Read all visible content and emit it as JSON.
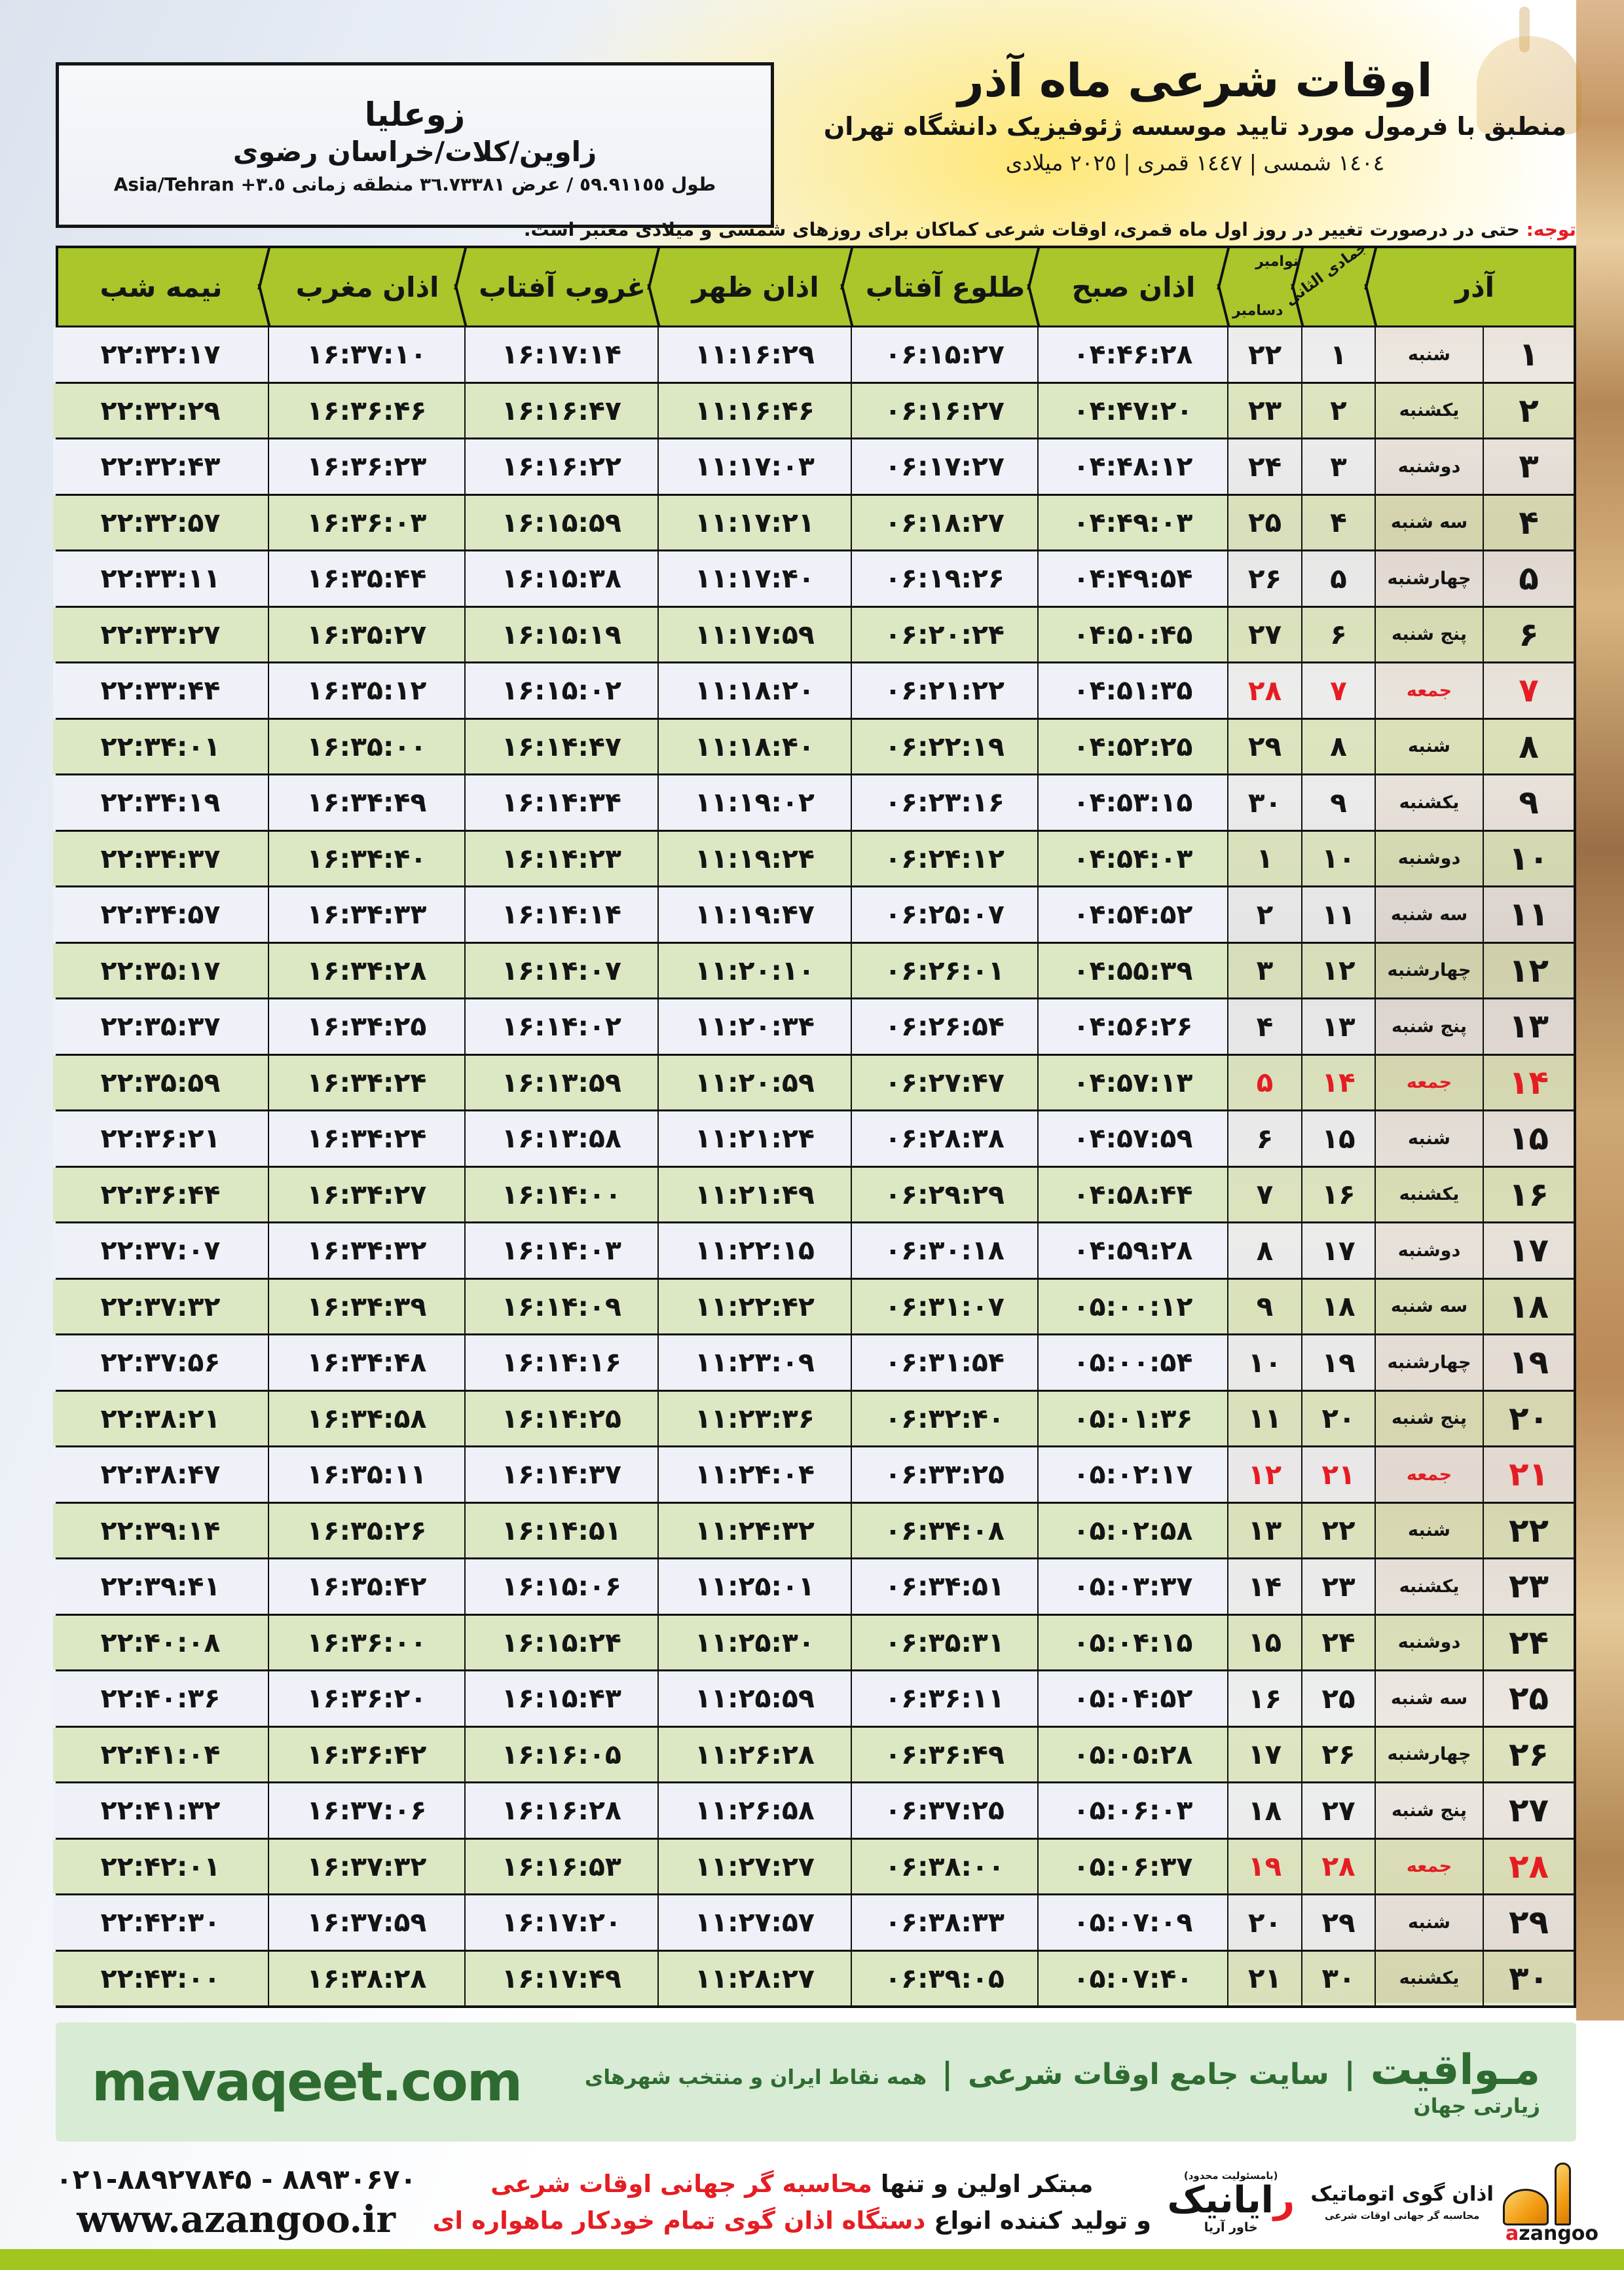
{
  "colors": {
    "header_green": "#a9c62b",
    "row_green": "#dbe8c3",
    "row_white": "#eef2f8",
    "friday_red": "#e51d23",
    "footer_green_bg": "#d8ebd4",
    "footer_green_text": "#2e6b31",
    "bottom_strip": "#a3c51f",
    "azangoo_orange": "#f29c12"
  },
  "meta": {
    "title": "اوقات شرعی ماه آذر",
    "subtitle": "منطبق با فرمول مورد تایید موسسه ژئوفیزیک دانشگاه تهران",
    "years": "١٤٠٤ شمسی | ١٤٤٧ قمری | ٢٠٢٥ میلادی"
  },
  "location": {
    "name": "زوعلیا",
    "region": "زاوین/کلات/خراسان رضوی",
    "coords_fa": "طول ٥٩.٩١١٥٥ / عرض ٣٦.٧٣٣٨١ منطقه زمانی",
    "coords_latin": "Asia/Tehran +٣.٥"
  },
  "note": {
    "label": "توجه:",
    "text": " حتی در درصورت تغییر در روز اول ماه قمری، اوقات شرعی کماکان برای روزهای شمسی و میلادی معتبر است."
  },
  "table": {
    "headers": {
      "azar": "آذر",
      "lunar": "جمادی الثانی",
      "greg_top": "نوامبر",
      "greg_bottom": "دسامبر",
      "sobh": "اذان صبح",
      "tolu": "طلوع آفتاب",
      "zohr": "اذان ظهر",
      "ghorub": "غروب آفتاب",
      "maghreb": "اذان مغرب",
      "nimeshab": "نیمه شب"
    },
    "rows": [
      {
        "azar": "۱",
        "weekday": "شنبه",
        "lunar": "۱",
        "greg": "۲۲",
        "sobh": "۰۴:۴۶:۲۸",
        "tolu": "۰۶:۱۵:۲۷",
        "zohr": "۱۱:۱۶:۲۹",
        "ghorub": "۱۶:۱۷:۱۴",
        "maghreb": "۱۶:۳۷:۱۰",
        "nimeshab": "۲۲:۳۲:۱۷",
        "friday": false
      },
      {
        "azar": "۲",
        "weekday": "یکشنبه",
        "lunar": "۲",
        "greg": "۲۳",
        "sobh": "۰۴:۴۷:۲۰",
        "tolu": "۰۶:۱۶:۲۷",
        "zohr": "۱۱:۱۶:۴۶",
        "ghorub": "۱۶:۱۶:۴۷",
        "maghreb": "۱۶:۳۶:۴۶",
        "nimeshab": "۲۲:۳۲:۲۹",
        "friday": false
      },
      {
        "azar": "۳",
        "weekday": "دوشنبه",
        "lunar": "۳",
        "greg": "۲۴",
        "sobh": "۰۴:۴۸:۱۲",
        "tolu": "۰۶:۱۷:۲۷",
        "zohr": "۱۱:۱۷:۰۳",
        "ghorub": "۱۶:۱۶:۲۲",
        "maghreb": "۱۶:۳۶:۲۳",
        "nimeshab": "۲۲:۳۲:۴۳",
        "friday": false
      },
      {
        "azar": "۴",
        "weekday": "سه شنبه",
        "lunar": "۴",
        "greg": "۲۵",
        "sobh": "۰۴:۴۹:۰۳",
        "tolu": "۰۶:۱۸:۲۷",
        "zohr": "۱۱:۱۷:۲۱",
        "ghorub": "۱۶:۱۵:۵۹",
        "maghreb": "۱۶:۳۶:۰۳",
        "nimeshab": "۲۲:۳۲:۵۷",
        "friday": false
      },
      {
        "azar": "۵",
        "weekday": "چهارشنبه",
        "lunar": "۵",
        "greg": "۲۶",
        "sobh": "۰۴:۴۹:۵۴",
        "tolu": "۰۶:۱۹:۲۶",
        "zohr": "۱۱:۱۷:۴۰",
        "ghorub": "۱۶:۱۵:۳۸",
        "maghreb": "۱۶:۳۵:۴۴",
        "nimeshab": "۲۲:۳۳:۱۱",
        "friday": false
      },
      {
        "azar": "۶",
        "weekday": "پنج شنبه",
        "lunar": "۶",
        "greg": "۲۷",
        "sobh": "۰۴:۵۰:۴۵",
        "tolu": "۰۶:۲۰:۲۴",
        "zohr": "۱۱:۱۷:۵۹",
        "ghorub": "۱۶:۱۵:۱۹",
        "maghreb": "۱۶:۳۵:۲۷",
        "nimeshab": "۲۲:۳۳:۲۷",
        "friday": false
      },
      {
        "azar": "۷",
        "weekday": "جمعه",
        "lunar": "۷",
        "greg": "۲۸",
        "sobh": "۰۴:۵۱:۳۵",
        "tolu": "۰۶:۲۱:۲۲",
        "zohr": "۱۱:۱۸:۲۰",
        "ghorub": "۱۶:۱۵:۰۲",
        "maghreb": "۱۶:۳۵:۱۲",
        "nimeshab": "۲۲:۳۳:۴۴",
        "friday": true
      },
      {
        "azar": "۸",
        "weekday": "شنبه",
        "lunar": "۸",
        "greg": "۲۹",
        "sobh": "۰۴:۵۲:۲۵",
        "tolu": "۰۶:۲۲:۱۹",
        "zohr": "۱۱:۱۸:۴۰",
        "ghorub": "۱۶:۱۴:۴۷",
        "maghreb": "۱۶:۳۵:۰۰",
        "nimeshab": "۲۲:۳۴:۰۱",
        "friday": false
      },
      {
        "azar": "۹",
        "weekday": "یکشنبه",
        "lunar": "۹",
        "greg": "۳۰",
        "sobh": "۰۴:۵۳:۱۵",
        "tolu": "۰۶:۲۳:۱۶",
        "zohr": "۱۱:۱۹:۰۲",
        "ghorub": "۱۶:۱۴:۳۴",
        "maghreb": "۱۶:۳۴:۴۹",
        "nimeshab": "۲۲:۳۴:۱۹",
        "friday": false
      },
      {
        "azar": "۱۰",
        "weekday": "دوشنبه",
        "lunar": "۱۰",
        "greg": "۱",
        "sobh": "۰۴:۵۴:۰۳",
        "tolu": "۰۶:۲۴:۱۲",
        "zohr": "۱۱:۱۹:۲۴",
        "ghorub": "۱۶:۱۴:۲۳",
        "maghreb": "۱۶:۳۴:۴۰",
        "nimeshab": "۲۲:۳۴:۳۷",
        "friday": false
      },
      {
        "azar": "۱۱",
        "weekday": "سه شنبه",
        "lunar": "۱۱",
        "greg": "۲",
        "sobh": "۰۴:۵۴:۵۲",
        "tolu": "۰۶:۲۵:۰۷",
        "zohr": "۱۱:۱۹:۴۷",
        "ghorub": "۱۶:۱۴:۱۴",
        "maghreb": "۱۶:۳۴:۳۳",
        "nimeshab": "۲۲:۳۴:۵۷",
        "friday": false
      },
      {
        "azar": "۱۲",
        "weekday": "چهارشنبه",
        "lunar": "۱۲",
        "greg": "۳",
        "sobh": "۰۴:۵۵:۳۹",
        "tolu": "۰۶:۲۶:۰۱",
        "zohr": "۱۱:۲۰:۱۰",
        "ghorub": "۱۶:۱۴:۰۷",
        "maghreb": "۱۶:۳۴:۲۸",
        "nimeshab": "۲۲:۳۵:۱۷",
        "friday": false
      },
      {
        "azar": "۱۳",
        "weekday": "پنج شنبه",
        "lunar": "۱۳",
        "greg": "۴",
        "sobh": "۰۴:۵۶:۲۶",
        "tolu": "۰۶:۲۶:۵۴",
        "zohr": "۱۱:۲۰:۳۴",
        "ghorub": "۱۶:۱۴:۰۲",
        "maghreb": "۱۶:۳۴:۲۵",
        "nimeshab": "۲۲:۳۵:۳۷",
        "friday": false
      },
      {
        "azar": "۱۴",
        "weekday": "جمعه",
        "lunar": "۱۴",
        "greg": "۵",
        "sobh": "۰۴:۵۷:۱۳",
        "tolu": "۰۶:۲۷:۴۷",
        "zohr": "۱۱:۲۰:۵۹",
        "ghorub": "۱۶:۱۳:۵۹",
        "maghreb": "۱۶:۳۴:۲۴",
        "nimeshab": "۲۲:۳۵:۵۹",
        "friday": true
      },
      {
        "azar": "۱۵",
        "weekday": "شنبه",
        "lunar": "۱۵",
        "greg": "۶",
        "sobh": "۰۴:۵۷:۵۹",
        "tolu": "۰۶:۲۸:۳۸",
        "zohr": "۱۱:۲۱:۲۴",
        "ghorub": "۱۶:۱۳:۵۸",
        "maghreb": "۱۶:۳۴:۲۴",
        "nimeshab": "۲۲:۳۶:۲۱",
        "friday": false
      },
      {
        "azar": "۱۶",
        "weekday": "یکشنبه",
        "lunar": "۱۶",
        "greg": "۷",
        "sobh": "۰۴:۵۸:۴۴",
        "tolu": "۰۶:۲۹:۲۹",
        "zohr": "۱۱:۲۱:۴۹",
        "ghorub": "۱۶:۱۴:۰۰",
        "maghreb": "۱۶:۳۴:۲۷",
        "nimeshab": "۲۲:۳۶:۴۴",
        "friday": false
      },
      {
        "azar": "۱۷",
        "weekday": "دوشنبه",
        "lunar": "۱۷",
        "greg": "۸",
        "sobh": "۰۴:۵۹:۲۸",
        "tolu": "۰۶:۳۰:۱۸",
        "zohr": "۱۱:۲۲:۱۵",
        "ghorub": "۱۶:۱۴:۰۳",
        "maghreb": "۱۶:۳۴:۳۲",
        "nimeshab": "۲۲:۳۷:۰۷",
        "friday": false
      },
      {
        "azar": "۱۸",
        "weekday": "سه شنبه",
        "lunar": "۱۸",
        "greg": "۹",
        "sobh": "۰۵:۰۰:۱۲",
        "tolu": "۰۶:۳۱:۰۷",
        "zohr": "۱۱:۲۲:۴۲",
        "ghorub": "۱۶:۱۴:۰۹",
        "maghreb": "۱۶:۳۴:۳۹",
        "nimeshab": "۲۲:۳۷:۳۲",
        "friday": false
      },
      {
        "azar": "۱۹",
        "weekday": "چهارشنبه",
        "lunar": "۱۹",
        "greg": "۱۰",
        "sobh": "۰۵:۰۰:۵۴",
        "tolu": "۰۶:۳۱:۵۴",
        "zohr": "۱۱:۲۳:۰۹",
        "ghorub": "۱۶:۱۴:۱۶",
        "maghreb": "۱۶:۳۴:۴۸",
        "nimeshab": "۲۲:۳۷:۵۶",
        "friday": false
      },
      {
        "azar": "۲۰",
        "weekday": "پنج شنبه",
        "lunar": "۲۰",
        "greg": "۱۱",
        "sobh": "۰۵:۰۱:۳۶",
        "tolu": "۰۶:۳۲:۴۰",
        "zohr": "۱۱:۲۳:۳۶",
        "ghorub": "۱۶:۱۴:۲۵",
        "maghreb": "۱۶:۳۴:۵۸",
        "nimeshab": "۲۲:۳۸:۲۱",
        "friday": false
      },
      {
        "azar": "۲۱",
        "weekday": "جمعه",
        "lunar": "۲۱",
        "greg": "۱۲",
        "sobh": "۰۵:۰۲:۱۷",
        "tolu": "۰۶:۳۳:۲۵",
        "zohr": "۱۱:۲۴:۰۴",
        "ghorub": "۱۶:۱۴:۳۷",
        "maghreb": "۱۶:۳۵:۱۱",
        "nimeshab": "۲۲:۳۸:۴۷",
        "friday": true
      },
      {
        "azar": "۲۲",
        "weekday": "شنبه",
        "lunar": "۲۲",
        "greg": "۱۳",
        "sobh": "۰۵:۰۲:۵۸",
        "tolu": "۰۶:۳۴:۰۸",
        "zohr": "۱۱:۲۴:۳۲",
        "ghorub": "۱۶:۱۴:۵۱",
        "maghreb": "۱۶:۳۵:۲۶",
        "nimeshab": "۲۲:۳۹:۱۴",
        "friday": false
      },
      {
        "azar": "۲۳",
        "weekday": "یکشنبه",
        "lunar": "۲۳",
        "greg": "۱۴",
        "sobh": "۰۵:۰۳:۳۷",
        "tolu": "۰۶:۳۴:۵۱",
        "zohr": "۱۱:۲۵:۰۱",
        "ghorub": "۱۶:۱۵:۰۶",
        "maghreb": "۱۶:۳۵:۴۲",
        "nimeshab": "۲۲:۳۹:۴۱",
        "friday": false
      },
      {
        "azar": "۲۴",
        "weekday": "دوشنبه",
        "lunar": "۲۴",
        "greg": "۱۵",
        "sobh": "۰۵:۰۴:۱۵",
        "tolu": "۰۶:۳۵:۳۱",
        "zohr": "۱۱:۲۵:۳۰",
        "ghorub": "۱۶:۱۵:۲۴",
        "maghreb": "۱۶:۳۶:۰۰",
        "nimeshab": "۲۲:۴۰:۰۸",
        "friday": false
      },
      {
        "azar": "۲۵",
        "weekday": "سه شنبه",
        "lunar": "۲۵",
        "greg": "۱۶",
        "sobh": "۰۵:۰۴:۵۲",
        "tolu": "۰۶:۳۶:۱۱",
        "zohr": "۱۱:۲۵:۵۹",
        "ghorub": "۱۶:۱۵:۴۳",
        "maghreb": "۱۶:۳۶:۲۰",
        "nimeshab": "۲۲:۴۰:۳۶",
        "friday": false
      },
      {
        "azar": "۲۶",
        "weekday": "چهارشنبه",
        "lunar": "۲۶",
        "greg": "۱۷",
        "sobh": "۰۵:۰۵:۲۸",
        "tolu": "۰۶:۳۶:۴۹",
        "zohr": "۱۱:۲۶:۲۸",
        "ghorub": "۱۶:۱۶:۰۵",
        "maghreb": "۱۶:۳۶:۴۲",
        "nimeshab": "۲۲:۴۱:۰۴",
        "friday": false
      },
      {
        "azar": "۲۷",
        "weekday": "پنج شنبه",
        "lunar": "۲۷",
        "greg": "۱۸",
        "sobh": "۰۵:۰۶:۰۳",
        "tolu": "۰۶:۳۷:۲۵",
        "zohr": "۱۱:۲۶:۵۸",
        "ghorub": "۱۶:۱۶:۲۸",
        "maghreb": "۱۶:۳۷:۰۶",
        "nimeshab": "۲۲:۴۱:۳۲",
        "friday": false
      },
      {
        "azar": "۲۸",
        "weekday": "جمعه",
        "lunar": "۲۸",
        "greg": "۱۹",
        "sobh": "۰۵:۰۶:۳۷",
        "tolu": "۰۶:۳۸:۰۰",
        "zohr": "۱۱:۲۷:۲۷",
        "ghorub": "۱۶:۱۶:۵۳",
        "maghreb": "۱۶:۳۷:۳۲",
        "nimeshab": "۲۲:۴۲:۰۱",
        "friday": true
      },
      {
        "azar": "۲۹",
        "weekday": "شنبه",
        "lunar": "۲۹",
        "greg": "۲۰",
        "sobh": "۰۵:۰۷:۰۹",
        "tolu": "۰۶:۳۸:۳۳",
        "zohr": "۱۱:۲۷:۵۷",
        "ghorub": "۱۶:۱۷:۲۰",
        "maghreb": "۱۶:۳۷:۵۹",
        "nimeshab": "۲۲:۴۲:۳۰",
        "friday": false
      },
      {
        "azar": "۳۰",
        "weekday": "یکشنبه",
        "lunar": "۳۰",
        "greg": "۲۱",
        "sobh": "۰۵:۰۷:۴۰",
        "tolu": "۰۶:۳۹:۰۵",
        "zohr": "۱۱:۲۸:۲۷",
        "ghorub": "۱۶:۱۷:۴۹",
        "maghreb": "۱۶:۳۸:۲۸",
        "nimeshab": "۲۲:۴۳:۰۰",
        "friday": false
      }
    ]
  },
  "footer_site": {
    "latin": "mavaqeet.com",
    "brand": "مـواقیت",
    "sep": "|",
    "tagline": "سایت جامع اوقات شرعی",
    "scope": "همه نقاط ایران و منتخب شهرهای زیارتی جهان"
  },
  "footer_bottom": {
    "phone": "۰۲۱-۸۸۹۲۷۸۴۵ - ۸۸۹۳۰۶۷۰",
    "url": "www.azangoo.ir",
    "line1_black": "مبتکر اولین و تنها ",
    "line1_red": "محاسبه گر جهانی اوقات شرعی",
    "line2_black": "و تولید کننده انواع ",
    "line2_red": "دستگاه اذان گوی تمام خودکار ماهواره ای",
    "rayanik_note": "(بامسئولیت محدود)",
    "rayanik_r": "ر",
    "rayanik_rest": "ایانیک",
    "rayanik_side": "خاور آریا",
    "azangoo_fa": "اذان گوی اتوماتیک",
    "azangoo_sub": "محاسبه گر جهانی اوقات شرعی",
    "azangoo_a": "a",
    "azangoo_rest": "zangoo"
  }
}
